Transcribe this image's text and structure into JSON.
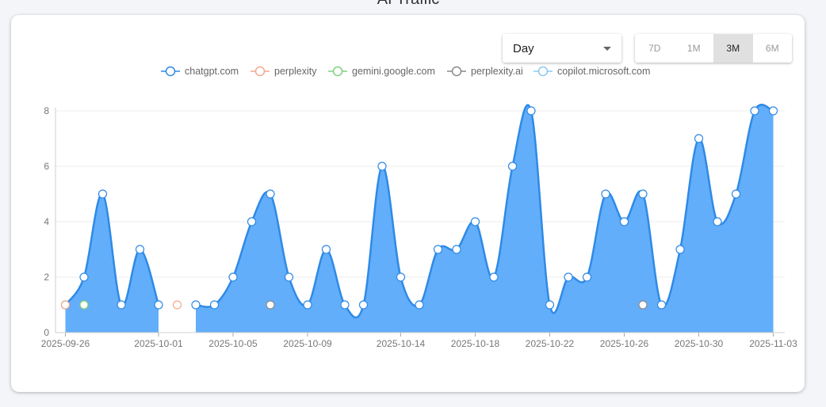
{
  "header": {
    "title": "AI Traffic"
  },
  "controls": {
    "period_value": "Day",
    "ranges": [
      {
        "label": "7D",
        "active": false
      },
      {
        "label": "1M",
        "active": false
      },
      {
        "label": "3M",
        "active": true
      },
      {
        "label": "6M",
        "active": false
      }
    ]
  },
  "chart_data": {
    "type": "area",
    "x_tick_labels": [
      "2025-09-26",
      "2025-10-01",
      "2025-10-05",
      "2025-10-09",
      "2025-10-14",
      "2025-10-18",
      "2025-10-22",
      "2025-10-26",
      "2025-10-30",
      "2025-11-03"
    ],
    "x_start": "2025-09-26",
    "ylim": [
      0,
      8
    ],
    "y_ticks": [
      0,
      2,
      4,
      6,
      8
    ],
    "grid": true,
    "legend_position": "top-center",
    "series": [
      {
        "name": "chatgpt.com",
        "color": "#2f8ae6",
        "fill": "#62aefa",
        "segments": [
          [
            [
              0,
              1
            ],
            [
              1,
              2
            ],
            [
              2,
              5
            ],
            [
              3,
              1
            ],
            [
              4,
              3
            ],
            [
              5,
              1
            ]
          ],
          [
            [
              7,
              1
            ],
            [
              8,
              1
            ],
            [
              9,
              2
            ],
            [
              10,
              4
            ],
            [
              11,
              5
            ],
            [
              12,
              2
            ],
            [
              13,
              1
            ],
            [
              14,
              3
            ],
            [
              15,
              1
            ],
            [
              16,
              1
            ],
            [
              17,
              6
            ],
            [
              18,
              2
            ],
            [
              19,
              1
            ],
            [
              20,
              3
            ],
            [
              21,
              3
            ],
            [
              22,
              4
            ],
            [
              23,
              2
            ],
            [
              24,
              6
            ],
            [
              25,
              8
            ],
            [
              26,
              1
            ],
            [
              27,
              2
            ],
            [
              28,
              2
            ],
            [
              29,
              5
            ],
            [
              30,
              4
            ],
            [
              31,
              5
            ],
            [
              32,
              1
            ],
            [
              33,
              3
            ],
            [
              34,
              7
            ],
            [
              35,
              4
            ],
            [
              36,
              5
            ],
            [
              37,
              8
            ],
            [
              38,
              8
            ]
          ]
        ]
      },
      {
        "name": "perplexity",
        "color": "#f2a98a",
        "fill": "#c9a7a5",
        "points": [
          [
            0,
            1
          ],
          [
            1,
            1
          ],
          [
            6,
            1
          ]
        ]
      },
      {
        "name": "gemini.google.com",
        "color": "#7ed17e",
        "points": [
          [
            1,
            1
          ]
        ]
      },
      {
        "name": "perplexity.ai",
        "color": "#8a8a8a",
        "points": [
          [
            11,
            1
          ],
          [
            31,
            1
          ]
        ]
      },
      {
        "name": "copilot.microsoft.com",
        "color": "#8cc8f2",
        "points": []
      }
    ]
  }
}
